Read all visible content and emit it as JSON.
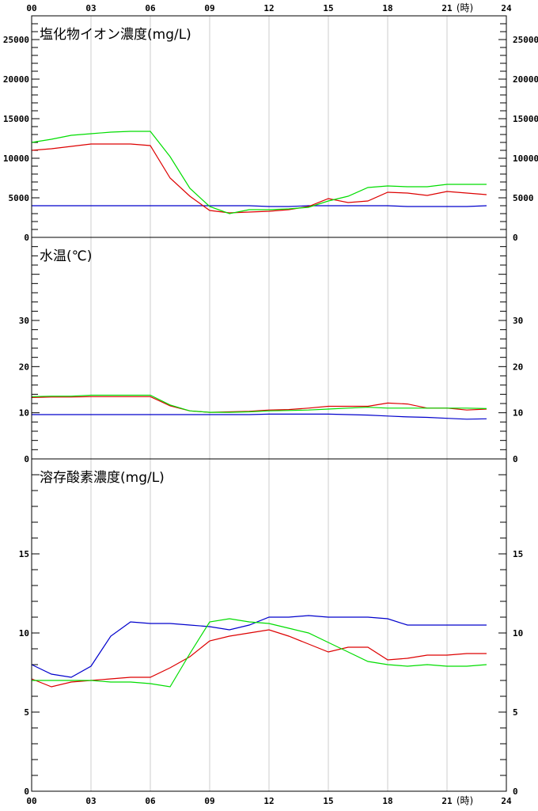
{
  "chart_data": {
    "type": "line",
    "x": {
      "ticks": [
        "00",
        "03",
        "06",
        "09",
        "12",
        "15",
        "18",
        "21",
        "24"
      ],
      "unit_label": "(時)",
      "range": [
        0,
        24
      ]
    },
    "colors": {
      "blue": "#0000cc",
      "red": "#dd0000",
      "green": "#00dd00",
      "grid": "#cccccc",
      "frame": "#000000"
    },
    "grid": true,
    "panels": [
      {
        "title": "塩化物イオン濃度(mg/L)",
        "ylim": [
          0,
          28000
        ],
        "major_step": 5000,
        "minor_step": 1000,
        "tick_labels": [
          "0",
          "5000",
          "10000",
          "15000",
          "20000",
          "25000"
        ],
        "x": [
          0,
          1,
          2,
          3,
          4,
          5,
          6,
          7,
          8,
          9,
          10,
          11,
          12,
          13,
          14,
          15,
          16,
          17,
          18,
          19,
          20,
          21,
          22,
          23
        ],
        "series": [
          {
            "color": "#0000cc",
            "values": [
              4000,
              4000,
              4000,
              4000,
              4000,
              4000,
              4000,
              4000,
              4000,
              4000,
              4000,
              4000,
              3900,
              3900,
              4000,
              4000,
              4000,
              4000,
              4000,
              3900,
              3900,
              3900,
              3900,
              4000
            ]
          },
          {
            "color": "#dd0000",
            "values": [
              11000,
              11200,
              11500,
              11800,
              11800,
              11800,
              11600,
              7500,
              5200,
              3400,
              3100,
              3200,
              3300,
              3500,
              3900,
              4900,
              4400,
              4600,
              5700,
              5600,
              5300,
              5800,
              5600,
              5400
            ]
          },
          {
            "color": "#00dd00",
            "values": [
              12000,
              12400,
              12900,
              13100,
              13300,
              13400,
              13400,
              10200,
              6200,
              3900,
              3000,
              3500,
              3500,
              3600,
              3800,
              4600,
              5200,
              6300,
              6500,
              6400,
              6400,
              6700,
              6700,
              6700
            ]
          }
        ]
      },
      {
        "title": "水温(℃)",
        "ylim": [
          0,
          48
        ],
        "major_step": 10,
        "minor_step": 2,
        "tick_labels": [
          "0",
          "10",
          "20",
          "30"
        ],
        "label_max": 30,
        "x": [
          0,
          1,
          2,
          3,
          4,
          5,
          6,
          7,
          8,
          9,
          10,
          11,
          12,
          13,
          14,
          15,
          16,
          17,
          18,
          19,
          20,
          21,
          22,
          23
        ],
        "series": [
          {
            "color": "#0000cc",
            "values": [
              9.6,
              9.6,
              9.6,
              9.6,
              9.6,
              9.6,
              9.6,
              9.6,
              9.6,
              9.6,
              9.6,
              9.6,
              9.7,
              9.7,
              9.7,
              9.7,
              9.6,
              9.5,
              9.3,
              9.1,
              9.0,
              8.8,
              8.6,
              8.7
            ]
          },
          {
            "color": "#dd0000",
            "values": [
              13.3,
              13.4,
              13.4,
              13.5,
              13.5,
              13.5,
              13.5,
              11.5,
              10.4,
              10.1,
              10.2,
              10.3,
              10.6,
              10.7,
              11.0,
              11.4,
              11.4,
              11.4,
              12.1,
              11.9,
              11.0,
              11.0,
              10.6,
              10.8
            ]
          },
          {
            "color": "#00dd00",
            "values": [
              13.5,
              13.6,
              13.6,
              13.8,
              13.8,
              13.8,
              13.8,
              11.7,
              10.4,
              10.1,
              10.1,
              10.2,
              10.4,
              10.5,
              10.6,
              10.8,
              11.0,
              11.2,
              11.0,
              11.0,
              11.0,
              11.0,
              11.0,
              10.9
            ]
          }
        ]
      },
      {
        "title": "溶存酸素濃度(mg/L)",
        "ylim": [
          0,
          21
        ],
        "major_step": 5,
        "minor_step": 1,
        "tick_labels": [
          "0",
          "5",
          "10",
          "15"
        ],
        "label_max": 15,
        "x": [
          0,
          1,
          2,
          3,
          4,
          5,
          6,
          7,
          8,
          9,
          10,
          11,
          12,
          13,
          14,
          15,
          16,
          17,
          18,
          19,
          20,
          21,
          22,
          23
        ],
        "series": [
          {
            "color": "#0000cc",
            "values": [
              8.0,
              7.4,
              7.2,
              7.9,
              9.8,
              10.7,
              10.6,
              10.6,
              10.5,
              10.4,
              10.2,
              10.5,
              11.0,
              11.0,
              11.1,
              11.0,
              11.0,
              11.0,
              10.9,
              10.5,
              10.5,
              10.5,
              10.5,
              10.5
            ]
          },
          {
            "color": "#dd0000",
            "values": [
              7.1,
              6.6,
              6.9,
              7.0,
              7.1,
              7.2,
              7.2,
              7.8,
              8.5,
              9.5,
              9.8,
              10.0,
              10.2,
              9.8,
              9.3,
              8.8,
              9.1,
              9.1,
              8.3,
              8.4,
              8.6,
              8.6,
              8.7,
              8.7
            ]
          },
          {
            "color": "#00dd00",
            "values": [
              7.0,
              7.0,
              7.0,
              7.0,
              6.9,
              6.9,
              6.8,
              6.6,
              8.7,
              10.7,
              10.9,
              10.7,
              10.6,
              10.3,
              10.0,
              9.4,
              8.8,
              8.2,
              8.0,
              7.9,
              8.0,
              7.9,
              7.9,
              8.0
            ]
          }
        ]
      }
    ]
  }
}
